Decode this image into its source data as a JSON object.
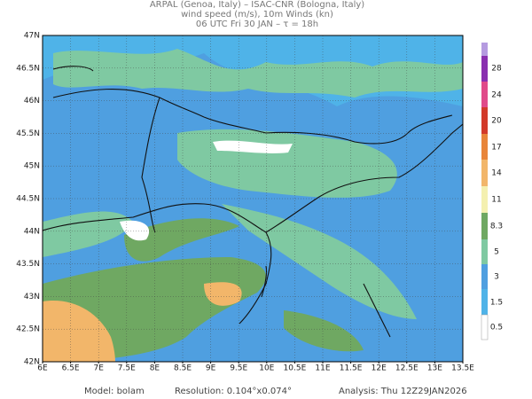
{
  "header": {
    "line1": "ARPAL (Genoa, Italy)  –  ISAC-CNR (Bologna, Italy)",
    "line2": "wind speed (m/s), 10m Winds (kn)",
    "line3": "06 UTC Fri 30 JAN  –  τ = 18h"
  },
  "map": {
    "longitudes": [
      "6E",
      "6.5E",
      "7E",
      "7.5E",
      "8E",
      "8.5E",
      "9E",
      "9.5E",
      "10E",
      "10.5E",
      "11E",
      "11.5E",
      "12E",
      "12.5E",
      "13E",
      "13.5E"
    ],
    "latitudes": [
      "47N",
      "46.5N",
      "46N",
      "45.5N",
      "45N",
      "44.5N",
      "44N",
      "43.5N",
      "43N",
      "42.5N",
      "42N"
    ]
  },
  "colorbar": {
    "labels": [
      28,
      24,
      20,
      17,
      14,
      11,
      8.3,
      5,
      3,
      1.5,
      0.5
    ]
  },
  "footer": {
    "model": "Model: bolam",
    "resolution": "Resolution: 0.104°x0.074°",
    "analysis": "Analysis: Thu 12Z29JAN2026"
  }
}
